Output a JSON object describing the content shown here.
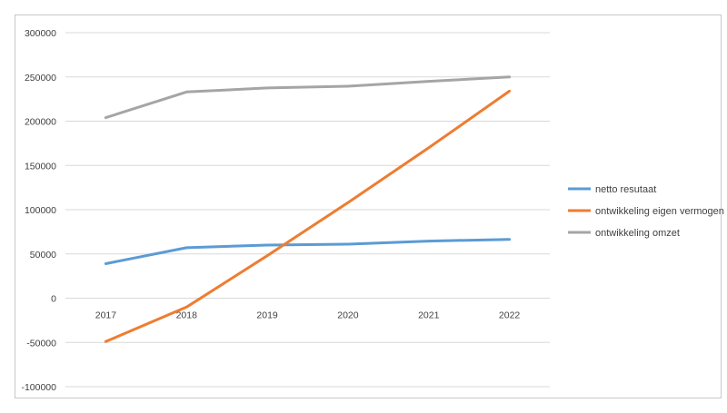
{
  "chart_data": {
    "type": "line",
    "categories": [
      "2017",
      "2018",
      "2019",
      "2020",
      "2021",
      "2022"
    ],
    "ylim": [
      -100000,
      300000
    ],
    "yticks": [
      "300000",
      "250000",
      "200000",
      "150000",
      "100000",
      "50000",
      "0",
      "-50000",
      "-100000"
    ],
    "grid": true,
    "legend_position": "right",
    "series": [
      {
        "name": "netto resutaat",
        "color": "#5b9bd5",
        "values": [
          39000,
          57000,
          60000,
          61000,
          64500,
          66500
        ]
      },
      {
        "name": "ontwikkeling eigen vermogen",
        "color": "#ed7d31",
        "values": [
          -49000,
          -10000,
          48000,
          108000,
          170000,
          234000
        ]
      },
      {
        "name": "ontwikkeling omzet",
        "color": "#a5a5a5",
        "values": [
          204000,
          233000,
          237500,
          239500,
          245000,
          250000
        ]
      }
    ]
  }
}
